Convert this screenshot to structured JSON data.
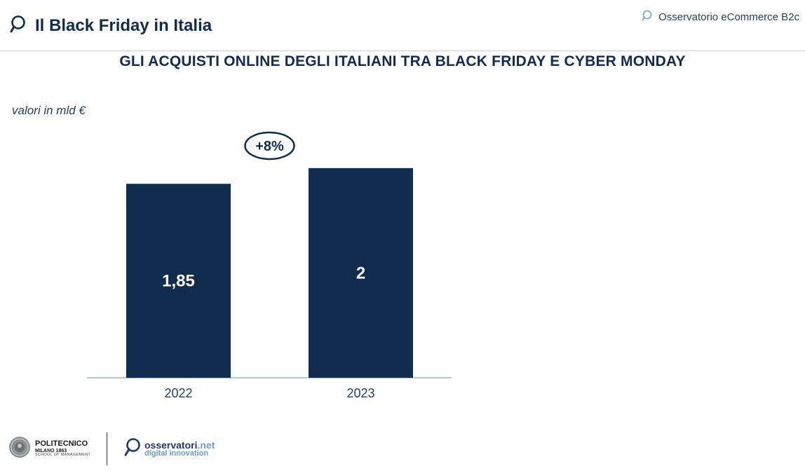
{
  "header": {
    "title": "Il Black Friday in Italia",
    "source": "Osservatorio eCommerce B2c"
  },
  "chart_data": {
    "type": "bar",
    "title": "GLI ACQUISTI ONLINE DEGLI ITALIANI TRA BLACK FRIDAY E CYBER MONDAY",
    "units_label": "valori in mld €",
    "categories": [
      "2022",
      "2023"
    ],
    "values": [
      1.85,
      2
    ],
    "value_labels": [
      "1,85",
      "2"
    ],
    "growth_label": "+8%",
    "ylim": [
      0,
      2.4
    ],
    "grid": false,
    "legend": "none",
    "bar_color": "#122c50",
    "value_label_color": "#ffffff"
  },
  "footer": {
    "polimi_name": "POLITECNICO",
    "polimi_city": "MILANO 1863",
    "polimi_school": "SCHOOL OF MANAGEMENT",
    "osservatori_main": "osservatori",
    "osservatori_suffix": ".net",
    "osservatori_sub": "digital innovation"
  },
  "colors": {
    "primary": "#122c50",
    "accent": "#6f9bcf"
  },
  "icons": [
    "search-magnifier-icon",
    "polimi-seal-logo",
    "osservatori-logo-icon"
  ]
}
